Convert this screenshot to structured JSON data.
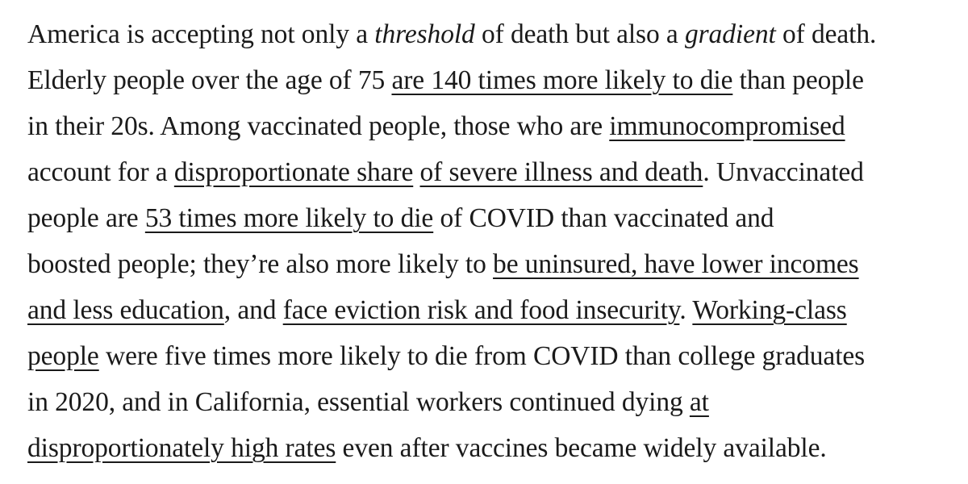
{
  "paragraph": {
    "l1": {
      "t1": "America is accepting not only a ",
      "em1": "threshold",
      "t2": " of death but also a ",
      "em2": "gradient",
      "t3": " of death."
    },
    "l2": {
      "t1": "Elderly people over the age of 75 ",
      "link1": "are 140 times more likely to die",
      "t2": " than people"
    },
    "l3": {
      "t1": "in their 20s. Among vaccinated people, those who are ",
      "link1": "immunocompromised"
    },
    "l4": {
      "t1": "account for a ",
      "link1": "disproportionate share",
      "t2": " ",
      "link2": "of severe illness and death",
      "t3": ". Unvaccinated"
    },
    "l5": {
      "t1": "people are ",
      "link1": "53 times more likely to die",
      "t2": " of COVID than vaccinated and"
    },
    "l6": {
      "t1": "boosted people; they’re also more likely to ",
      "link1": "be uninsured, have lower incomes"
    },
    "l7": {
      "link1": "and less education",
      "t1": ", and ",
      "link2": "face eviction risk and food insecurity",
      "t2": ". ",
      "link3": "Working-class"
    },
    "l8": {
      "link1": "people",
      "t1": " were five times more likely to die from COVID than college graduates"
    },
    "l9": {
      "t1": "in 2020, and in California, essential workers continued dying ",
      "link1": "at"
    },
    "l10": {
      "link1": "disproportionately high rates",
      "t1": " even after vaccines became widely available."
    }
  }
}
